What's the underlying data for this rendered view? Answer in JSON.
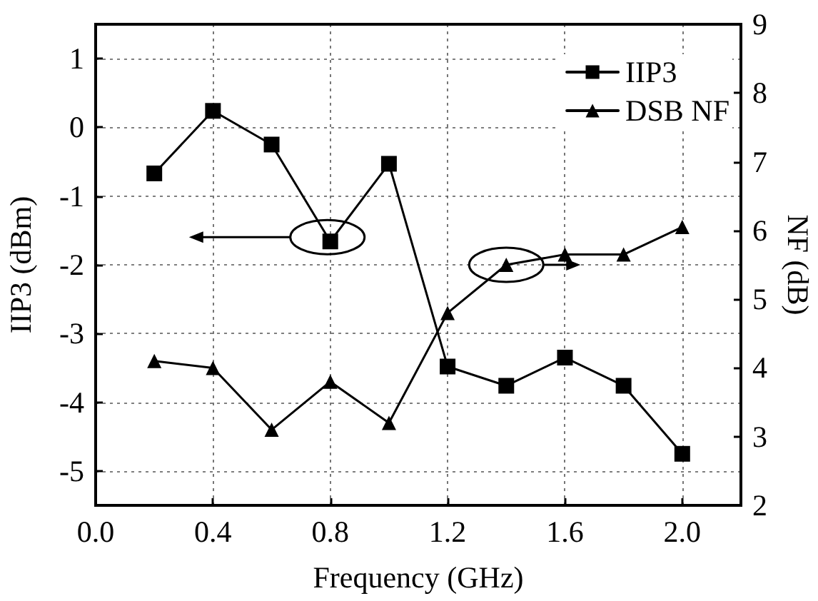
{
  "chart_data": {
    "type": "line",
    "xlabel": "Frequency (GHz)",
    "ylabel": "IIP3 (dBm)",
    "y2label": "NF (dB)",
    "x": [
      0.2,
      0.4,
      0.6,
      0.8,
      1.0,
      1.2,
      1.4,
      1.6,
      1.8,
      2.0
    ],
    "series": [
      {
        "name": "IIP3",
        "color": "#000000",
        "marker": "square",
        "values": [
          -0.67,
          0.24,
          -0.25,
          -1.66,
          -0.53,
          -3.48,
          -3.76,
          -3.35,
          -3.76,
          -4.75
        ]
      },
      {
        "name": "DSB NF",
        "color": "#000000",
        "marker": "triangle",
        "axis": "y2",
        "values": [
          4.1,
          4.0,
          3.1,
          3.8,
          3.2,
          4.8,
          5.5,
          5.65,
          5.65,
          6.05
        ]
      }
    ],
    "xlim": [
      0,
      2.2
    ],
    "xticks": [
      {
        "value": 0,
        "label": "0.0"
      },
      0.4,
      0.8,
      1.2,
      1.6,
      {
        "value": 2,
        "label": "2.0"
      }
    ],
    "ylim": [
      -5.5,
      1.5
    ],
    "yticks": [
      -5,
      -4,
      -3,
      -2,
      -1,
      0,
      1
    ],
    "y2lim": [
      2,
      9
    ],
    "y2ticks": [
      2,
      3,
      4,
      5,
      6,
      7,
      8,
      9
    ],
    "grid": true,
    "legend": "top right",
    "line_style": "solid"
  }
}
